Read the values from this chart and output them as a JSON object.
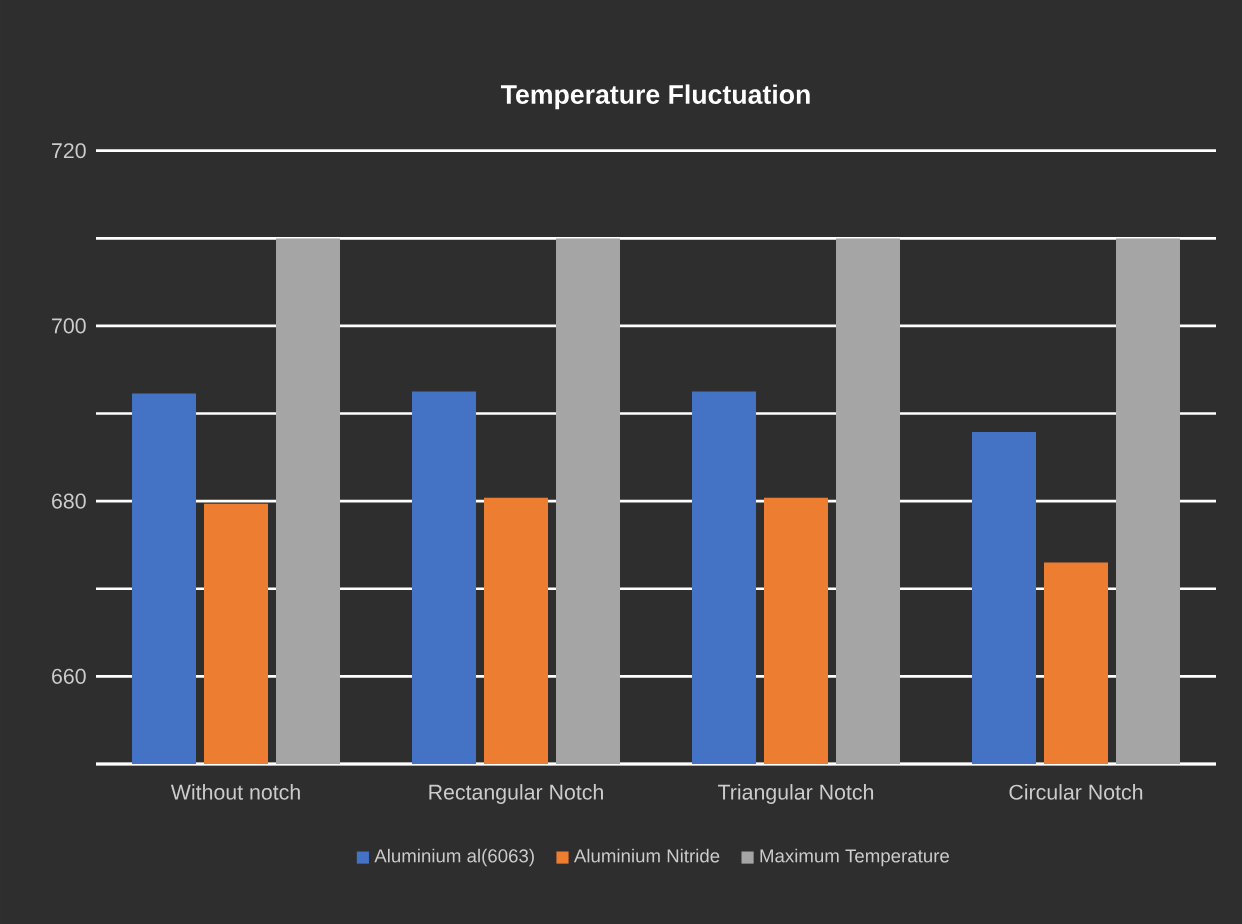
{
  "chart_data": {
    "type": "bar",
    "title": "Temperature Fluctuation",
    "categories": [
      "Without notch",
      "Rectangular Notch",
      "Triangular Notch",
      "Circular Notch"
    ],
    "series": [
      {
        "name": "Aluminium al(6063)",
        "color": "#4472c4",
        "values": [
          692.3,
          692.5,
          692.5,
          687.9
        ]
      },
      {
        "name": "Aluminium Nitride",
        "color": "#ed7d31",
        "values": [
          679.7,
          680.4,
          680.4,
          673.0
        ]
      },
      {
        "name": "Maximum Temperature",
        "color": "#a5a5a5",
        "values": [
          710,
          710,
          710,
          710
        ]
      }
    ],
    "ylim": [
      650,
      720
    ],
    "yticks": [
      {
        "value": 650,
        "label": null
      },
      660,
      {
        "value": 670,
        "label": null
      },
      680,
      {
        "value": 690,
        "label": null
      },
      700,
      {
        "value": 710,
        "label": null
      },
      720
    ],
    "grid": "y",
    "legend": "bottom"
  }
}
